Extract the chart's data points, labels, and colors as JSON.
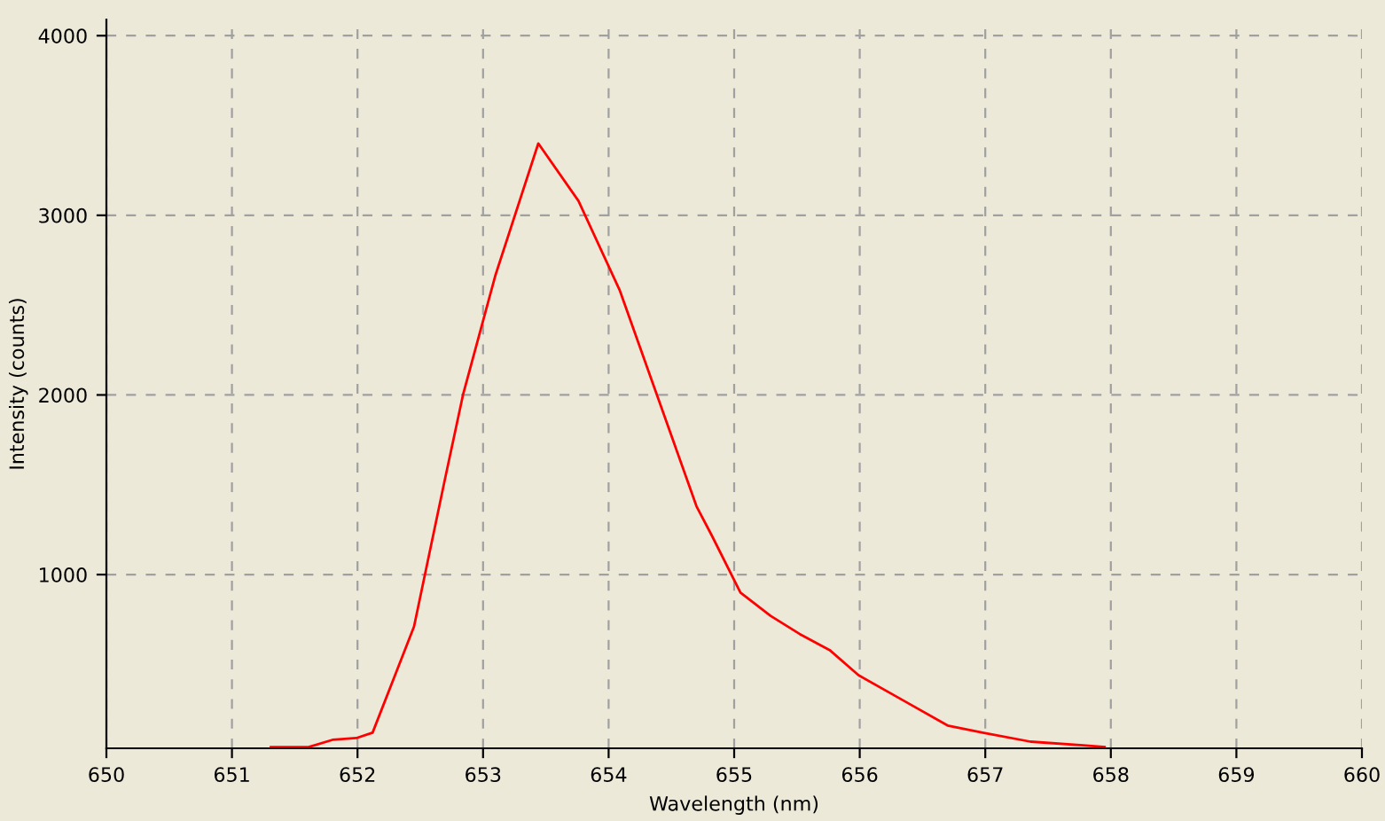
{
  "chart_data": {
    "type": "line",
    "xlabel": "Wavelength (nm)",
    "ylabel": "Intensity (counts)",
    "x": [
      651.31,
      651.61,
      651.8,
      651.99,
      652.12,
      652.45,
      652.69,
      652.84,
      653.1,
      653.44,
      653.76,
      654.09,
      654.4,
      654.7,
      654.82,
      655.05,
      655.29,
      655.52,
      655.76,
      655.99,
      656.32,
      656.7,
      656.98,
      657.36,
      657.78,
      657.95
    ],
    "series": [
      {
        "color": "#ff0000",
        "values": [
          40,
          40,
          80,
          90,
          120,
          710,
          1510,
          2000,
          2670,
          3400,
          3080,
          2580,
          1970,
          1380,
          1220,
          900,
          770,
          670,
          580,
          440,
          310,
          160,
          120,
          70,
          50,
          40
        ]
      }
    ],
    "xlim": [
      650,
      660
    ],
    "xticks": [
      650,
      651,
      652,
      653,
      654,
      655,
      656,
      657,
      658,
      659,
      660
    ],
    "ylim": [
      33,
      4090
    ],
    "yticks": [
      1000,
      2000,
      3000,
      4000
    ],
    "grid": true,
    "marker": "none",
    "line_style": "solid"
  }
}
